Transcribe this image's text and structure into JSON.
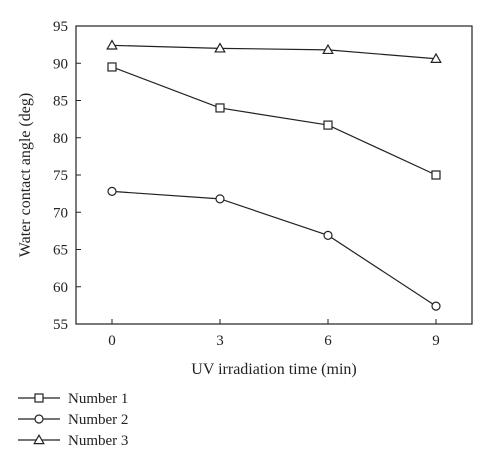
{
  "chart_data": {
    "type": "line",
    "xlabel": "UV irradiation time (min)",
    "ylabel": "Water contact angle (deg)",
    "x": [
      0,
      3,
      6,
      9
    ],
    "xlim": [
      -1,
      10
    ],
    "ylim": [
      55,
      95
    ],
    "xticks": [
      "0",
      "3",
      "6",
      "9"
    ],
    "yticks": [
      "55",
      "60",
      "65",
      "70",
      "75",
      "80",
      "85",
      "90",
      "95"
    ],
    "grid": false,
    "legend_position": "bottom-left, below plot",
    "series": [
      {
        "name": "Number 1",
        "marker": "square",
        "values": [
          89.5,
          84.0,
          81.7,
          75.0
        ]
      },
      {
        "name": "Number 2",
        "marker": "circle",
        "values": [
          72.8,
          71.8,
          66.9,
          57.4
        ]
      },
      {
        "name": "Number 3",
        "marker": "triangle",
        "values": [
          92.4,
          92.0,
          91.8,
          90.6
        ]
      }
    ],
    "colors": {
      "line": "#222222",
      "marker_fill": "#ffffff"
    }
  }
}
